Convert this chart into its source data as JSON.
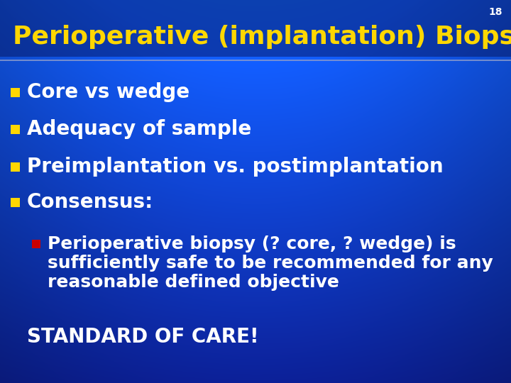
{
  "slide_number": "18",
  "title": "Perioperative (implantation) Biopsy",
  "title_color": "#FFD700",
  "bg_color_top": "#0a1a7a",
  "bg_color_bottom": "#1a6aee",
  "separator_color": "#8899cc",
  "bullet_color": "#FFD700",
  "sub_bullet_color": "#CC0000",
  "text_color": "#FFFFFF",
  "slide_number_color": "#FFFFFF",
  "bullets": [
    "Core vs wedge",
    "Adequacy of sample",
    "Preimplantation vs. postimplantation",
    "Consensus:"
  ],
  "sub_bullet_lines": [
    "Perioperative biopsy (? core, ? wedge) is",
    "sufficiently safe to be recommended for any",
    "reasonable defined objective"
  ],
  "footer": "STANDARD OF CARE!",
  "title_fontsize": 26,
  "bullet_fontsize": 20,
  "sub_bullet_fontsize": 18,
  "footer_fontsize": 20,
  "slide_number_fontsize": 10
}
